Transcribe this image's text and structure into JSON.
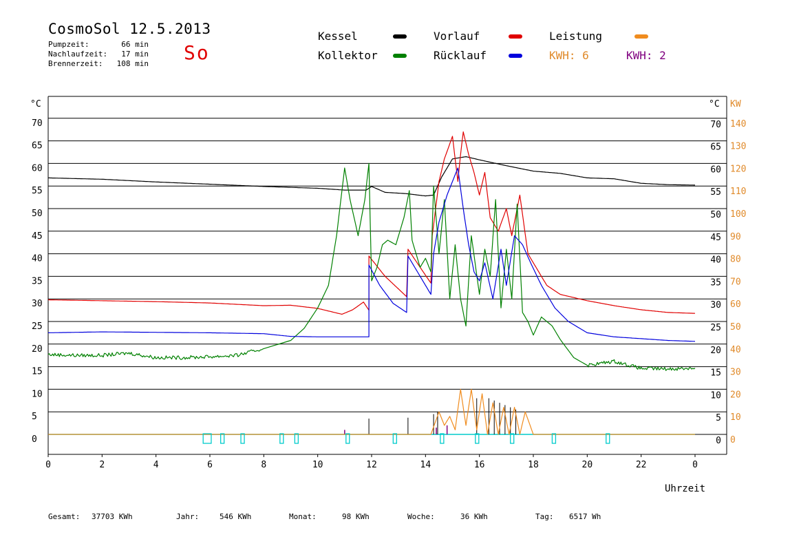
{
  "header": {
    "title": "CosmoSol 12.5.2013",
    "day": "So",
    "stats": [
      {
        "label": "Pumpzeit:",
        "value": "66 min"
      },
      {
        "label": "Nachlaufzeit:",
        "value": "17 min"
      },
      {
        "label": "Brennerzeit:",
        "value": "108 min"
      }
    ]
  },
  "legend": {
    "kessel": {
      "label": "Kessel",
      "color": "#000000"
    },
    "vorlauf": {
      "label": "Vorlauf",
      "color": "#e00000"
    },
    "leistung": {
      "label": "Leistung",
      "color": "#f08c1e"
    },
    "kollektor": {
      "label": "Kollektor",
      "color": "#008000"
    },
    "ruecklauf": {
      "label": "Rücklauf",
      "color": "#0000dd"
    },
    "kwh_orange": {
      "label": "KWH: 6",
      "color": "#e08a2a"
    },
    "kwh_purple": {
      "label": "KWH: 2",
      "color": "#800080"
    }
  },
  "chart_data": {
    "type": "line",
    "xlabel": "Uhrzeit",
    "ylabel_left": "°C",
    "ylabel_right_1": "°C",
    "ylabel_right_2": "KW",
    "xlim": [
      0,
      24
    ],
    "ylim": [
      -4.5,
      75
    ],
    "x_ticks": [
      "0",
      "2",
      "4",
      "6",
      "8",
      "10",
      "12",
      "14",
      "16",
      "18",
      "20",
      "22",
      "0"
    ],
    "y_ticks_left": [
      "0",
      "5",
      "10",
      "15",
      "20",
      "25",
      "30",
      "35",
      "40",
      "45",
      "50",
      "55",
      "60",
      "65",
      "70"
    ],
    "y_ticks_right_c": [
      "0",
      "5",
      "10",
      "15",
      "20",
      "25",
      "30",
      "35",
      "40",
      "45",
      "50",
      "55",
      "60",
      "65",
      "70"
    ],
    "y_ticks_right_kw": [
      "0",
      "10",
      "20",
      "30",
      "40",
      "50",
      "60",
      "70",
      "80",
      "90",
      "100",
      "110",
      "120",
      "130",
      "140"
    ],
    "grid": true,
    "series": [
      {
        "name": "Kessel",
        "color": "#000000",
        "points": [
          [
            0,
            56.8
          ],
          [
            2,
            56.5
          ],
          [
            4,
            55.9
          ],
          [
            6,
            55.4
          ],
          [
            8,
            54.9
          ],
          [
            10,
            54.5
          ],
          [
            11,
            54.1
          ],
          [
            11.8,
            54.1
          ],
          [
            12,
            54.9
          ],
          [
            12.5,
            53.6
          ],
          [
            13.3,
            53.3
          ],
          [
            14,
            52.8
          ],
          [
            14.3,
            53.0
          ],
          [
            14.6,
            57
          ],
          [
            15,
            61
          ],
          [
            15.5,
            61.5
          ],
          [
            16,
            60.8
          ],
          [
            17,
            59.5
          ],
          [
            18,
            58.3
          ],
          [
            19,
            57.8
          ],
          [
            20,
            56.8
          ],
          [
            21,
            56.6
          ],
          [
            22,
            55.6
          ],
          [
            23,
            55.3
          ],
          [
            24,
            55.2
          ]
        ]
      },
      {
        "name": "Vorlauf",
        "color": "#e00000",
        "points": [
          [
            0,
            29.8
          ],
          [
            2,
            29.6
          ],
          [
            4,
            29.4
          ],
          [
            6,
            29.1
          ],
          [
            8,
            28.5
          ],
          [
            9,
            28.6
          ],
          [
            10,
            27.9
          ],
          [
            10.9,
            26.6
          ],
          [
            11.3,
            27.6
          ],
          [
            11.7,
            29.3
          ],
          [
            11.9,
            27.5
          ],
          [
            11.9,
            39.5
          ],
          [
            12.5,
            35
          ],
          [
            13.3,
            30.5
          ],
          [
            13.35,
            41
          ],
          [
            13.8,
            37
          ],
          [
            14.2,
            33.5
          ],
          [
            14.25,
            44
          ],
          [
            14.5,
            56
          ],
          [
            14.7,
            61
          ],
          [
            15.0,
            66
          ],
          [
            15.2,
            56
          ],
          [
            15.3,
            62
          ],
          [
            15.4,
            67
          ],
          [
            15.6,
            62
          ],
          [
            15.8,
            58
          ],
          [
            16.0,
            53
          ],
          [
            16.2,
            58
          ],
          [
            16.4,
            48
          ],
          [
            16.7,
            45
          ],
          [
            17.0,
            50
          ],
          [
            17.2,
            44
          ],
          [
            17.5,
            53
          ],
          [
            17.8,
            40
          ],
          [
            18.5,
            33
          ],
          [
            19,
            31
          ],
          [
            20,
            29.6
          ],
          [
            21,
            28.5
          ],
          [
            22,
            27.6
          ],
          [
            23,
            27.0
          ],
          [
            24,
            26.8
          ]
        ]
      },
      {
        "name": "Kollektor",
        "color": "#008000",
        "points": [
          [
            0,
            17.7
          ],
          [
            1,
            17.5
          ],
          [
            2,
            17.5
          ],
          [
            3,
            18
          ],
          [
            4,
            17
          ],
          [
            5,
            17
          ],
          [
            6,
            17.2
          ],
          [
            7,
            17.5
          ],
          [
            8,
            19
          ],
          [
            9,
            20.8
          ],
          [
            9.5,
            23.5
          ],
          [
            10,
            28
          ],
          [
            10.4,
            33
          ],
          [
            10.7,
            44
          ],
          [
            11.0,
            59
          ],
          [
            11.2,
            52
          ],
          [
            11.5,
            44
          ],
          [
            11.75,
            52
          ],
          [
            11.9,
            60
          ],
          [
            12.0,
            34
          ],
          [
            12.2,
            37
          ],
          [
            12.4,
            42
          ],
          [
            12.6,
            43
          ],
          [
            12.9,
            42
          ],
          [
            13.2,
            48
          ],
          [
            13.4,
            54
          ],
          [
            13.5,
            43
          ],
          [
            13.8,
            37
          ],
          [
            14.0,
            39
          ],
          [
            14.2,
            36
          ],
          [
            14.3,
            55
          ],
          [
            14.5,
            40
          ],
          [
            14.7,
            52
          ],
          [
            14.9,
            30
          ],
          [
            15.1,
            42
          ],
          [
            15.3,
            30
          ],
          [
            15.5,
            24
          ],
          [
            15.7,
            44
          ],
          [
            16,
            31
          ],
          [
            16.2,
            41
          ],
          [
            16.4,
            35
          ],
          [
            16.6,
            52
          ],
          [
            16.8,
            28
          ],
          [
            17,
            41
          ],
          [
            17.2,
            30
          ],
          [
            17.4,
            51
          ],
          [
            17.6,
            27
          ],
          [
            17.8,
            25
          ],
          [
            18,
            22
          ],
          [
            18.3,
            26
          ],
          [
            18.7,
            24
          ],
          [
            19,
            21
          ],
          [
            19.5,
            17
          ],
          [
            20,
            15.3
          ],
          [
            21,
            16.2
          ],
          [
            22,
            14.6
          ],
          [
            23,
            14.5
          ],
          [
            24,
            14.7
          ]
        ]
      },
      {
        "name": "Rücklauf",
        "color": "#0000dd",
        "points": [
          [
            0,
            22.5
          ],
          [
            2,
            22.7
          ],
          [
            4,
            22.6
          ],
          [
            6,
            22.5
          ],
          [
            8,
            22.3
          ],
          [
            9,
            21.7
          ],
          [
            10,
            21.6
          ],
          [
            11,
            21.6
          ],
          [
            11.9,
            21.6
          ],
          [
            11.9,
            37.5
          ],
          [
            12.3,
            33
          ],
          [
            12.8,
            29
          ],
          [
            13.3,
            27
          ],
          [
            13.35,
            39.5
          ],
          [
            13.8,
            35
          ],
          [
            14.2,
            31
          ],
          [
            14.3,
            40
          ],
          [
            14.5,
            47
          ],
          [
            14.8,
            53
          ],
          [
            15.0,
            56
          ],
          [
            15.2,
            59
          ],
          [
            15.4,
            50
          ],
          [
            15.6,
            42
          ],
          [
            15.8,
            36
          ],
          [
            16.0,
            34
          ],
          [
            16.2,
            38
          ],
          [
            16.5,
            30
          ],
          [
            16.8,
            41
          ],
          [
            17.0,
            33
          ],
          [
            17.3,
            44
          ],
          [
            17.6,
            42
          ],
          [
            17.9,
            38
          ],
          [
            18.3,
            33
          ],
          [
            18.8,
            28
          ],
          [
            19.3,
            25
          ],
          [
            20,
            22.5
          ],
          [
            21,
            21.6
          ],
          [
            22,
            21.2
          ],
          [
            23,
            20.8
          ],
          [
            24,
            20.6
          ]
        ]
      },
      {
        "name": "Leistung",
        "color": "#f08c1e",
        "points": [
          [
            0,
            0
          ],
          [
            14.2,
            0
          ],
          [
            14.5,
            5
          ],
          [
            14.7,
            2
          ],
          [
            14.9,
            4
          ],
          [
            15.1,
            1
          ],
          [
            15.3,
            10
          ],
          [
            15.5,
            2
          ],
          [
            15.7,
            10
          ],
          [
            15.9,
            1
          ],
          [
            16.1,
            9
          ],
          [
            16.3,
            0
          ],
          [
            16.5,
            7
          ],
          [
            16.7,
            0
          ],
          [
            16.9,
            6
          ],
          [
            17.1,
            0
          ],
          [
            17.3,
            6
          ],
          [
            17.5,
            0
          ],
          [
            17.7,
            5
          ],
          [
            18,
            0
          ],
          [
            24,
            0
          ]
        ]
      }
    ]
  },
  "footer": [
    {
      "label": "Gesamt:",
      "value": "37703 KWh"
    },
    {
      "label": "Jahr:",
      "value": "546 KWh"
    },
    {
      "label": "Monat:",
      "value": "98 KWh"
    },
    {
      "label": "Woche:",
      "value": "36 KWh"
    },
    {
      "label": "Tag:",
      "value": "6517 Wh"
    }
  ]
}
